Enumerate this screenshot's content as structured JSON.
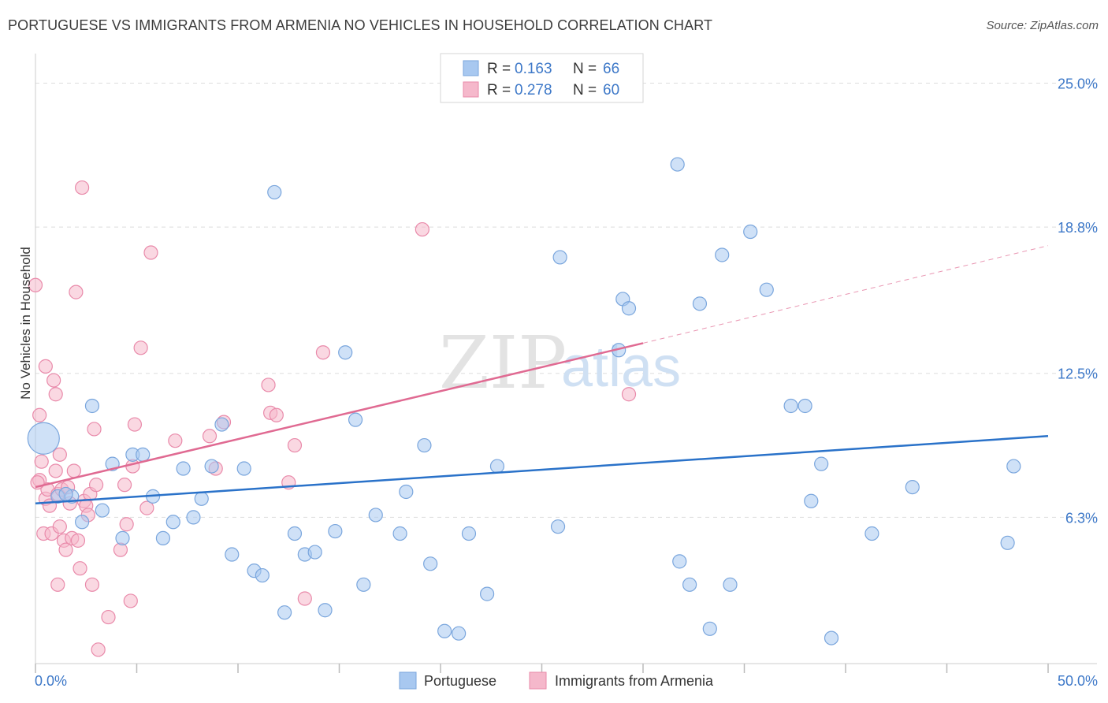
{
  "title": "PORTUGUESE VS IMMIGRANTS FROM ARMENIA NO VEHICLES IN HOUSEHOLD CORRELATION CHART",
  "source": "Source: ZipAtlas.com",
  "watermark": {
    "zip": "ZIP",
    "atlas": "atlas"
  },
  "colors": {
    "blue": "#a8c8f0",
    "blue_stroke": "#7aa6dd",
    "blue_line": "#2a72c9",
    "pink": "#f5b8cb",
    "pink_stroke": "#e98aaa",
    "pink_line": "#e06a92",
    "axis_text": "#3d78c8",
    "grid": "#dddddd"
  },
  "legend": {
    "rows": [
      {
        "r_label": "R = ",
        "r_value": "0.163",
        "n_label": "N = ",
        "n_value": "66"
      },
      {
        "r_label": "R = ",
        "r_value": "0.278",
        "n_label": "N = ",
        "n_value": "60"
      }
    ]
  },
  "bottom_legend": [
    {
      "label": "Portuguese"
    },
    {
      "label": "Immigrants from Armenia"
    }
  ],
  "chart_data": {
    "type": "scatter",
    "title": "PORTUGUESE VS IMMIGRANTS FROM ARMENIA NO VEHICLES IN HOUSEHOLD CORRELATION CHART",
    "xlabel": "",
    "ylabel": "No Vehicles in Household",
    "xlim": [
      0,
      50
    ],
    "ylim": [
      0,
      26
    ],
    "x_tick_labels": [
      "0.0%",
      "50.0%"
    ],
    "y_ticks": [
      6.3,
      12.5,
      18.8,
      25.0
    ],
    "y_tick_labels": [
      "6.3%",
      "12.5%",
      "18.8%",
      "25.0%"
    ],
    "series": [
      {
        "name": "Portuguese",
        "R": 0.163,
        "N": 66,
        "trend": {
          "x0": 0,
          "y0": 6.9,
          "x1": 50,
          "y1": 9.8
        },
        "points": [
          [
            0.4,
            9.7,
            1
          ],
          [
            1.1,
            7.2,
            0
          ],
          [
            1.8,
            7.2,
            0
          ],
          [
            2.3,
            6.1,
            0
          ],
          [
            2.8,
            11.1,
            0
          ],
          [
            3.3,
            6.6,
            0
          ],
          [
            3.8,
            8.6,
            0
          ],
          [
            4.3,
            5.4,
            0
          ],
          [
            4.8,
            9.0,
            0
          ],
          [
            5.3,
            9.0,
            0
          ],
          [
            5.8,
            7.2,
            0
          ],
          [
            6.3,
            5.4,
            0
          ],
          [
            6.8,
            6.1,
            0
          ],
          [
            7.3,
            8.4,
            0
          ],
          [
            7.8,
            6.3,
            0
          ],
          [
            8.2,
            7.1,
            0
          ],
          [
            8.7,
            8.5,
            0
          ],
          [
            9.2,
            10.3,
            0
          ],
          [
            9.7,
            4.7,
            0
          ],
          [
            10.3,
            8.4,
            0
          ],
          [
            10.8,
            4.0,
            0
          ],
          [
            11.2,
            3.8,
            0
          ],
          [
            11.8,
            20.3,
            0
          ],
          [
            12.3,
            2.2,
            0
          ],
          [
            12.8,
            5.6,
            0
          ],
          [
            13.3,
            4.7,
            0
          ],
          [
            13.8,
            4.8,
            0
          ],
          [
            14.3,
            2.3,
            0
          ],
          [
            14.8,
            5.7,
            0
          ],
          [
            15.3,
            13.4,
            0
          ],
          [
            15.8,
            10.5,
            0
          ],
          [
            16.2,
            3.4,
            0
          ],
          [
            16.8,
            6.4,
            0
          ],
          [
            18.0,
            5.6,
            0
          ],
          [
            18.3,
            7.4,
            0
          ],
          [
            19.2,
            9.4,
            0
          ],
          [
            19.5,
            4.3,
            0
          ],
          [
            20.2,
            1.4,
            0
          ],
          [
            20.9,
            1.3,
            0
          ],
          [
            21.4,
            5.6,
            0
          ],
          [
            22.3,
            3.0,
            0
          ],
          [
            22.8,
            8.5,
            0
          ],
          [
            25.8,
            5.9,
            0
          ],
          [
            25.9,
            17.5,
            0
          ],
          [
            28.8,
            13.5,
            0
          ],
          [
            29.0,
            15.7,
            0
          ],
          [
            29.3,
            15.3,
            0
          ],
          [
            31.7,
            21.5,
            0
          ],
          [
            31.8,
            4.4,
            0
          ],
          [
            32.3,
            3.4,
            0
          ],
          [
            32.8,
            15.5,
            0
          ],
          [
            33.3,
            1.5,
            0
          ],
          [
            33.9,
            17.6,
            0
          ],
          [
            34.3,
            3.4,
            0
          ],
          [
            35.3,
            18.6,
            0
          ],
          [
            36.1,
            16.1,
            0
          ],
          [
            37.3,
            11.1,
            0
          ],
          [
            38.0,
            11.1,
            0
          ],
          [
            38.3,
            7.0,
            0
          ],
          [
            38.8,
            8.6,
            0
          ],
          [
            39.3,
            1.1,
            0
          ],
          [
            41.3,
            5.6,
            0
          ],
          [
            43.3,
            7.6,
            0
          ],
          [
            48.0,
            5.2,
            0
          ],
          [
            48.3,
            8.5,
            0
          ],
          [
            1.5,
            7.3,
            0
          ]
        ]
      },
      {
        "name": "Immigrants from Armenia",
        "R": 0.278,
        "N": 60,
        "trend": {
          "x0": 0,
          "y0": 7.6,
          "x1": 30.0,
          "y1": 13.8
        },
        "trend_dashed_to": {
          "x": 50,
          "y": 18.0
        },
        "points": [
          [
            0.0,
            16.3,
            0
          ],
          [
            0.2,
            10.7,
            0
          ],
          [
            0.2,
            7.9,
            0
          ],
          [
            0.3,
            8.7,
            0
          ],
          [
            0.4,
            5.6,
            0
          ],
          [
            0.5,
            7.1,
            0
          ],
          [
            0.5,
            12.8,
            0
          ],
          [
            0.6,
            7.5,
            0
          ],
          [
            0.7,
            6.8,
            0
          ],
          [
            0.8,
            5.6,
            0
          ],
          [
            0.9,
            12.2,
            0
          ],
          [
            1.0,
            11.6,
            0
          ],
          [
            1.0,
            8.3,
            0
          ],
          [
            1.1,
            3.4,
            0
          ],
          [
            1.1,
            7.3,
            0
          ],
          [
            1.2,
            9.0,
            0
          ],
          [
            1.2,
            5.9,
            0
          ],
          [
            1.3,
            7.5,
            0
          ],
          [
            1.4,
            5.3,
            0
          ],
          [
            1.5,
            4.9,
            0
          ],
          [
            1.6,
            7.6,
            0
          ],
          [
            1.7,
            6.9,
            0
          ],
          [
            1.8,
            5.4,
            0
          ],
          [
            1.9,
            8.3,
            0
          ],
          [
            2.0,
            16.0,
            0
          ],
          [
            2.1,
            5.3,
            0
          ],
          [
            2.2,
            4.1,
            0
          ],
          [
            2.3,
            20.5,
            0
          ],
          [
            2.4,
            7.0,
            0
          ],
          [
            2.5,
            6.8,
            0
          ],
          [
            2.6,
            6.4,
            0
          ],
          [
            2.7,
            7.3,
            0
          ],
          [
            2.8,
            3.4,
            0
          ],
          [
            2.9,
            10.1,
            0
          ],
          [
            3.0,
            7.7,
            0
          ],
          [
            3.1,
            0.6,
            0
          ],
          [
            3.6,
            2.0,
            0
          ],
          [
            4.2,
            4.9,
            0
          ],
          [
            4.4,
            7.7,
            0
          ],
          [
            4.5,
            6.0,
            0
          ],
          [
            4.7,
            2.7,
            0
          ],
          [
            4.8,
            8.5,
            0
          ],
          [
            4.9,
            10.3,
            0
          ],
          [
            5.2,
            13.6,
            0
          ],
          [
            5.5,
            6.7,
            0
          ],
          [
            5.7,
            17.7,
            0
          ],
          [
            6.9,
            9.6,
            0
          ],
          [
            8.6,
            9.8,
            0
          ],
          [
            8.9,
            8.4,
            0
          ],
          [
            9.3,
            10.4,
            0
          ],
          [
            11.5,
            12.0,
            0
          ],
          [
            11.6,
            10.8,
            0
          ],
          [
            11.9,
            10.7,
            0
          ],
          [
            12.5,
            7.8,
            0
          ],
          [
            12.8,
            9.4,
            0
          ],
          [
            13.3,
            2.8,
            0
          ],
          [
            14.2,
            13.4,
            0
          ],
          [
            19.1,
            18.7,
            0
          ],
          [
            29.3,
            11.6,
            0
          ],
          [
            0.1,
            7.8,
            0
          ]
        ]
      }
    ]
  }
}
